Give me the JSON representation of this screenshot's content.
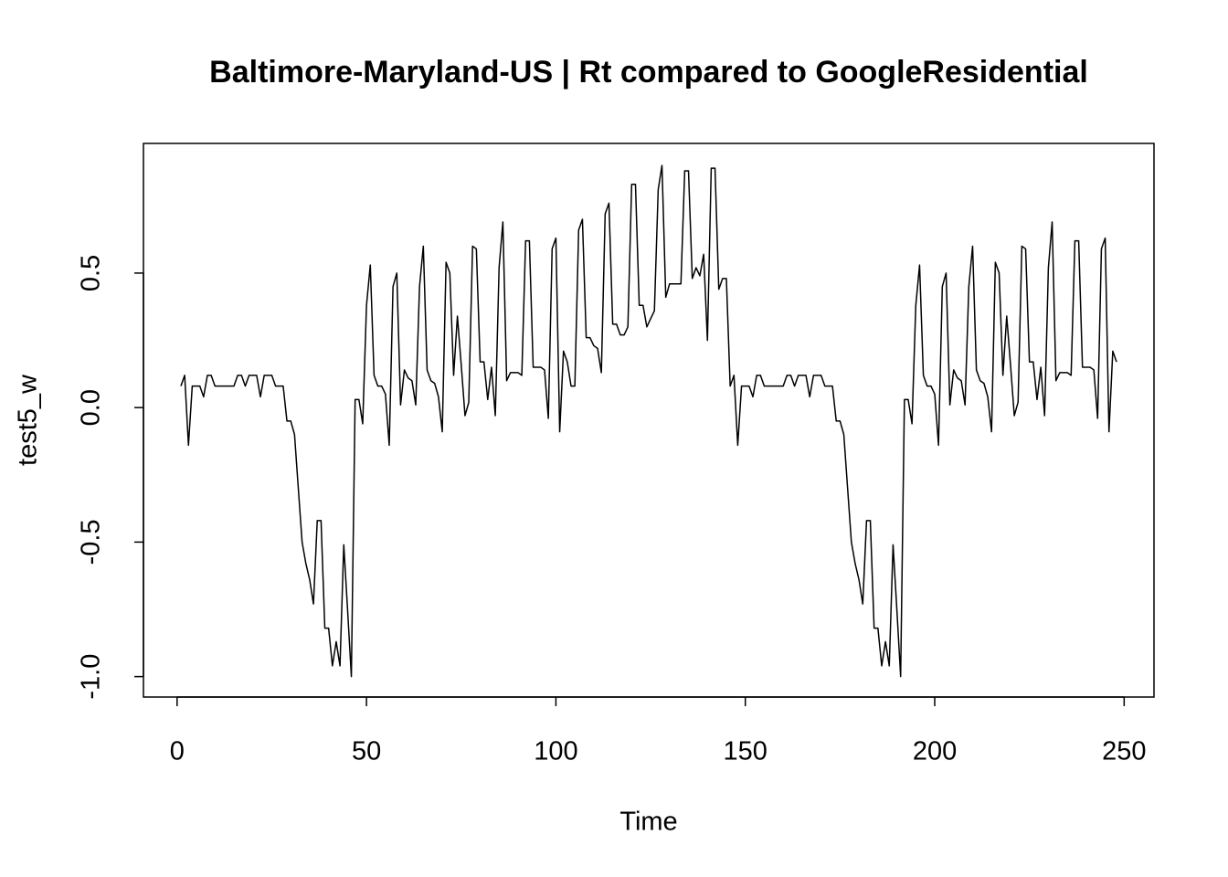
{
  "chart_data": {
    "type": "line",
    "title": "Baltimore-Maryland-US | Rt compared to GoogleResidential",
    "x_label": "Time",
    "y_label": "test5_w",
    "color": "#000000",
    "xlim": [
      -8.88,
      257.88
    ],
    "ylim": [
      -1.076,
      0.982
    ],
    "xticks": [
      0,
      50,
      100,
      150,
      200,
      250
    ],
    "yticks": [
      {
        "value": -1.0,
        "label": "-1.0"
      },
      -0.5,
      {
        "value": 0.0,
        "label": "0.0"
      },
      0.5
    ],
    "x": [
      1,
      2,
      3,
      4,
      5,
      6,
      7,
      8,
      9,
      10,
      11,
      12,
      13,
      14,
      15,
      16,
      17,
      18,
      19,
      20,
      21,
      22,
      23,
      24,
      25,
      26,
      27,
      28,
      29,
      30,
      31,
      32,
      33,
      34,
      35,
      36,
      37,
      38,
      39,
      40,
      41,
      42,
      43,
      44,
      45,
      46,
      47,
      48,
      49,
      50,
      51,
      52,
      53,
      54,
      55,
      56,
      57,
      58,
      59,
      60,
      61,
      62,
      63,
      64,
      65,
      66,
      67,
      68,
      69,
      70,
      71,
      72,
      73,
      74,
      75,
      76,
      77,
      78,
      79,
      80,
      81,
      82,
      83,
      84,
      85,
      86,
      87,
      88,
      89,
      90,
      91,
      92,
      93,
      94,
      95,
      96,
      97,
      98,
      99,
      100,
      101,
      102,
      103,
      104,
      105,
      106,
      107,
      108,
      109,
      110,
      111,
      112,
      113,
      114,
      115,
      116,
      117,
      118,
      119,
      120,
      121,
      122,
      123,
      124,
      125,
      126,
      127,
      128,
      129,
      130,
      131,
      132,
      133,
      134,
      135,
      136,
      137,
      138,
      139,
      140,
      141,
      142,
      143,
      144,
      145,
      146,
      147,
      148,
      149,
      150,
      151,
      152,
      153,
      154,
      155,
      156,
      157,
      158,
      159,
      160,
      161,
      162,
      163,
      164,
      165,
      166,
      167,
      168,
      169,
      170,
      171,
      172,
      173,
      174,
      175,
      176,
      177,
      178,
      179,
      180,
      181,
      182,
      183,
      184,
      185,
      186,
      187,
      188,
      189,
      190,
      191,
      192,
      193,
      194,
      195,
      196,
      197,
      198,
      199,
      200,
      201,
      202,
      203,
      204,
      205,
      206,
      207,
      208,
      209,
      210,
      211,
      212,
      213,
      214,
      215,
      216,
      217,
      218,
      219,
      220,
      221,
      222,
      223,
      224,
      225,
      226,
      227,
      228,
      229,
      230,
      231,
      232,
      233,
      234,
      235,
      236,
      237,
      238,
      239,
      240,
      241,
      242,
      243,
      244,
      245,
      246,
      247,
      248
    ],
    "values": [
      0.08,
      0.12,
      -0.14,
      0.08,
      0.08,
      0.08,
      0.04,
      0.12,
      0.12,
      0.08,
      0.08,
      0.08,
      0.08,
      0.08,
      0.08,
      0.12,
      0.12,
      0.08,
      0.12,
      0.12,
      0.12,
      0.04,
      0.12,
      0.12,
      0.12,
      0.08,
      0.08,
      0.08,
      -0.05,
      -0.05,
      -0.1,
      -0.3,
      -0.5,
      -0.58,
      -0.64,
      -0.73,
      -0.42,
      -0.42,
      -0.82,
      -0.82,
      -0.96,
      -0.87,
      -0.96,
      -0.51,
      -0.75,
      -1.0,
      0.03,
      0.03,
      -0.06,
      0.38,
      0.53,
      0.12,
      0.08,
      0.08,
      0.05,
      -0.14,
      0.45,
      0.5,
      0.01,
      0.14,
      0.11,
      0.1,
      0.01,
      0.45,
      0.6,
      0.14,
      0.1,
      0.09,
      0.04,
      -0.09,
      0.54,
      0.5,
      0.12,
      0.34,
      0.16,
      -0.03,
      0.02,
      0.6,
      0.59,
      0.17,
      0.17,
      0.03,
      0.15,
      -0.03,
      0.52,
      0.69,
      0.1,
      0.13,
      0.13,
      0.13,
      0.12,
      0.62,
      0.62,
      0.15,
      0.15,
      0.15,
      0.14,
      -0.04,
      0.59,
      0.63,
      -0.09,
      0.21,
      0.17,
      0.08,
      0.08,
      0.66,
      0.7,
      0.26,
      0.26,
      0.23,
      0.22,
      0.13,
      0.72,
      0.76,
      0.31,
      0.31,
      0.27,
      0.27,
      0.3,
      0.83,
      0.83,
      0.38,
      0.38,
      0.3,
      0.33,
      0.36,
      0.81,
      0.9,
      0.41,
      0.46,
      0.46,
      0.46,
      0.46,
      0.88,
      0.88,
      0.48,
      0.52,
      0.49,
      0.57,
      0.25,
      0.89,
      0.89,
      0.44,
      0.48,
      0.48,
      0.08,
      0.12,
      -0.14,
      0.08,
      0.08,
      0.08,
      0.04,
      0.12,
      0.12,
      0.08,
      0.08,
      0.08,
      0.08,
      0.08,
      0.08,
      0.12,
      0.12,
      0.08,
      0.12,
      0.12,
      0.12,
      0.04,
      0.12,
      0.12,
      0.12,
      0.08,
      0.08,
      0.08,
      -0.05,
      -0.05,
      -0.1,
      -0.3,
      -0.5,
      -0.58,
      -0.64,
      -0.73,
      -0.42,
      -0.42,
      -0.82,
      -0.82,
      -0.96,
      -0.87,
      -0.96,
      -0.51,
      -0.75,
      -1.0,
      0.03,
      0.03,
      -0.06,
      0.38,
      0.53,
      0.12,
      0.08,
      0.08,
      0.05,
      -0.14,
      0.45,
      0.5,
      0.01,
      0.14,
      0.11,
      0.1,
      0.01,
      0.45,
      0.6,
      0.14,
      0.1,
      0.09,
      0.04,
      -0.09,
      0.54,
      0.5,
      0.12,
      0.34,
      0.16,
      -0.03,
      0.02,
      0.6,
      0.59,
      0.17,
      0.17,
      0.03,
      0.15,
      -0.03,
      0.52,
      0.69,
      0.1,
      0.13,
      0.13,
      0.13,
      0.12,
      0.62,
      0.62,
      0.15,
      0.15,
      0.15,
      0.14,
      -0.04,
      0.59,
      0.63,
      -0.09,
      0.21,
      0.17
    ]
  }
}
